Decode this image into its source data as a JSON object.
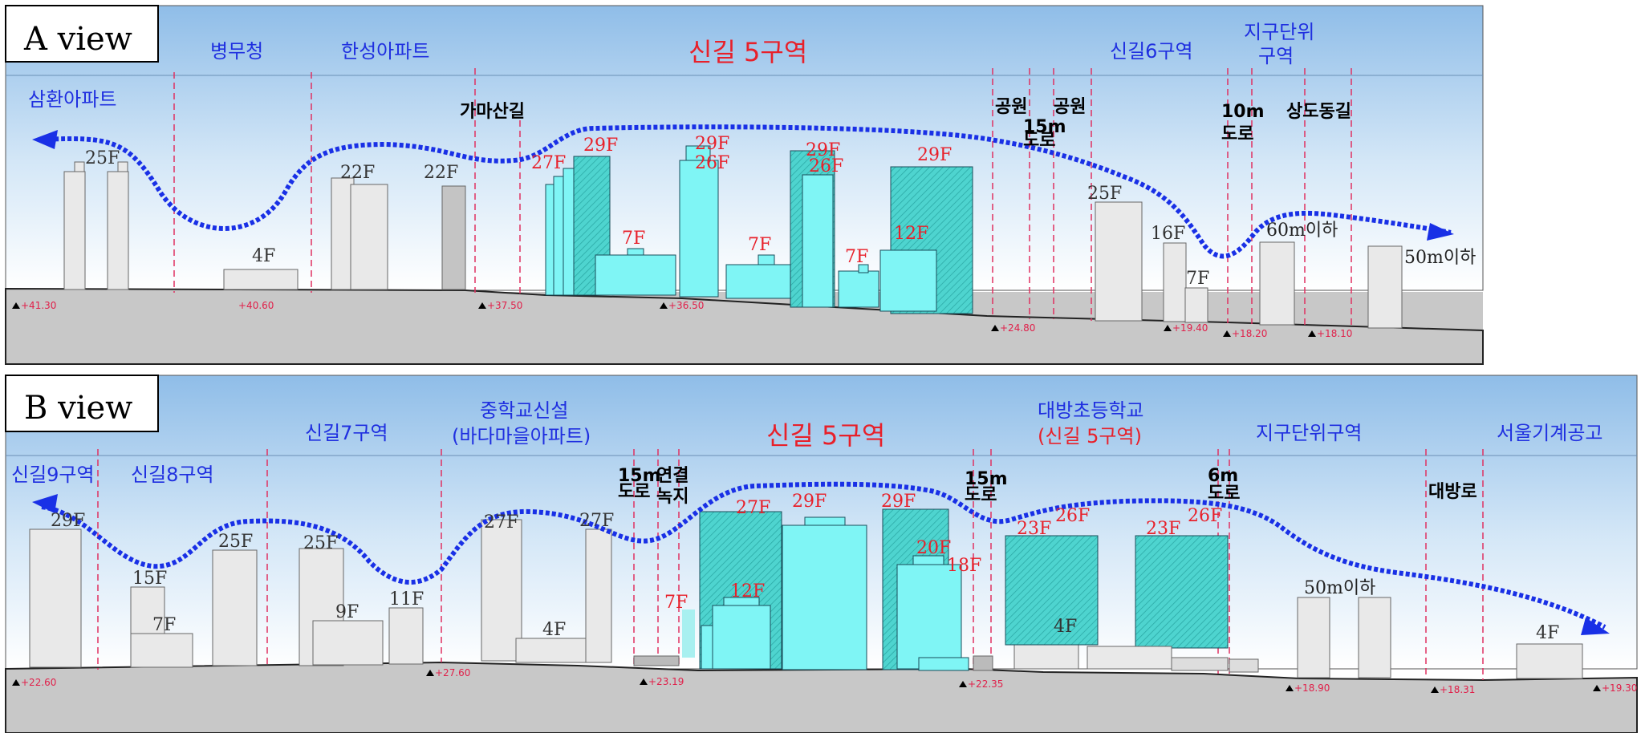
{
  "panels": [
    {
      "id": "a",
      "title": "A view",
      "zones": [
        "병무청",
        "한성아파트",
        "신길6구역"
      ],
      "zone_district_top": "지구단위",
      "zone_district_bottom": "구역",
      "main_zone": "신길 5구역",
      "left_apt": "삼환아파트",
      "road_labels": [
        "가마산길",
        "공원",
        "15m",
        "도로",
        "공원",
        "10m",
        "도로",
        "상도동길"
      ],
      "floors_grey": [
        "25F",
        "4F",
        "22F",
        "22F",
        "25F",
        "16F",
        "7F"
      ],
      "floors_red": [
        "27F",
        "29F",
        "29F",
        "26F",
        "29F",
        "26F",
        "29F",
        "7F",
        "7F",
        "7F",
        "12F"
      ],
      "limits": [
        "60m이하",
        "50m이하"
      ],
      "elevations": [
        "+41.30",
        "+40.60",
        "+37.50",
        "+36.50",
        "+24.80",
        "+19.40",
        "+18.20",
        "+18.10"
      ]
    },
    {
      "id": "b",
      "title": "B view",
      "zones": [
        "신길9구역",
        "신길8구역",
        "신길7구역",
        "지구단위구역",
        "서울기계공고"
      ],
      "school_top": "중학교신설",
      "school_bottom": "(바다마을아파트)",
      "main_zone": "신길 5구역",
      "elem_top": "대방초등학교",
      "elem_bottom": "(신길 5구역)",
      "road_labels": [
        "15m",
        "도로",
        "연결",
        "녹지",
        "15m",
        "도로",
        "6m",
        "도로",
        "대방로"
      ],
      "floors_grey": [
        "29F",
        "15F",
        "7F",
        "25F",
        "25F",
        "9F",
        "11F",
        "27F",
        "4F",
        "27F",
        "4F",
        "4F"
      ],
      "floors_red": [
        "7F",
        "27F",
        "12F",
        "29F",
        "29F",
        "20F",
        "18F",
        "23F",
        "26F",
        "23F",
        "26F"
      ],
      "limits": [
        "50m이하"
      ],
      "elevations": [
        "+22.60",
        "+27.60",
        "+23.19",
        "+22.35",
        "+18.90",
        "+18.31",
        "+19.30"
      ]
    }
  ]
}
